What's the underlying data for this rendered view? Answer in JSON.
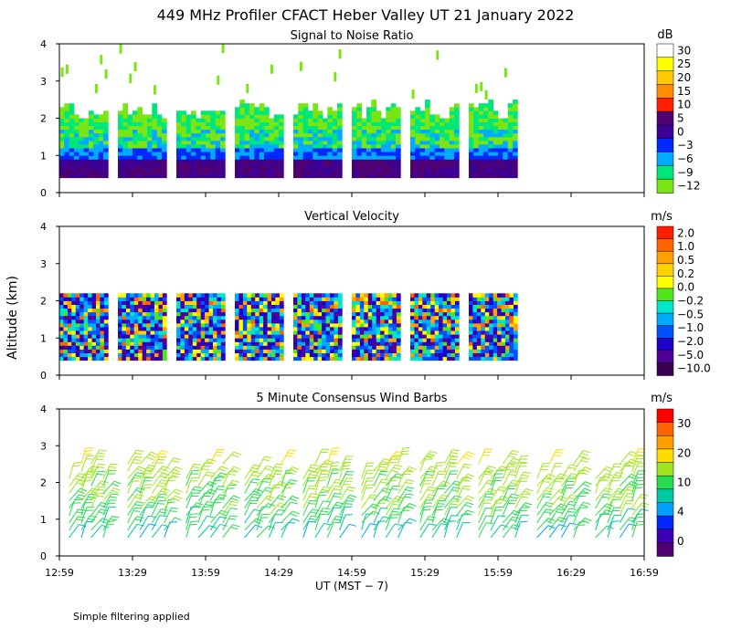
{
  "figure": {
    "title": "449 MHz Profiler CFACT Heber Valley UT 21 January 2022",
    "ylabel": "Altitude (km)",
    "xlabel": "UT  (MST − 7)",
    "footnote": "Simple filtering applied",
    "x_ticks": [
      "12:59",
      "13:29",
      "13:59",
      "14:29",
      "14:59",
      "15:29",
      "15:59",
      "16:29",
      "16:59"
    ]
  },
  "chart_data": [
    {
      "type": "heatmap",
      "title": "Signal to Noise Ratio",
      "x_range": [
        "12:59",
        "16:59"
      ],
      "xlim": [
        0,
        240
      ],
      "ylim": [
        0,
        4
      ],
      "y_ticks": [
        0,
        1,
        2,
        3,
        4
      ],
      "colorbar_unit": "dB",
      "colorbar_ticks": [
        "30",
        "25",
        "20",
        "15",
        "10",
        "5",
        "0",
        "−3",
        "−6",
        "−9",
        "−12"
      ],
      "colorbar_colors": [
        "#ffffff",
        "#ffff00",
        "#ffc800",
        "#ff8c00",
        "#ff1e00",
        "#500070",
        "#3c0096",
        "#0028ff",
        "#00aaff",
        "#00e678",
        "#78e614"
      ],
      "data_blocks_minutes": [
        [
          0,
          20
        ],
        [
          24,
          44
        ],
        [
          48,
          68
        ],
        [
          72,
          92
        ],
        [
          96,
          116
        ],
        [
          120,
          140
        ],
        [
          144,
          164
        ],
        [
          168,
          188
        ]
      ],
      "boundary_layer_top_km": 2.2
    },
    {
      "type": "heatmap",
      "title": "Vertical Velocity",
      "x_range": [
        "12:59",
        "16:59"
      ],
      "xlim": [
        0,
        240
      ],
      "ylim": [
        0,
        4
      ],
      "y_ticks": [
        0,
        1,
        2,
        3,
        4
      ],
      "colorbar_unit": "m/s",
      "colorbar_ticks": [
        "2.0",
        "1.0",
        "0.5",
        "0.2",
        "0.0",
        "−0.2",
        "−0.5",
        "−1.0",
        "−2.0",
        "−5.0",
        "−10.0"
      ],
      "colorbar_colors": [
        "#ff1e00",
        "#ff6400",
        "#ffa000",
        "#ffd200",
        "#ffff00",
        "#50e61e",
        "#00e6c8",
        "#00aaff",
        "#0050ff",
        "#1e00c8",
        "#500096",
        "#3c0050"
      ],
      "data_blocks_minutes": [
        [
          0,
          20
        ],
        [
          24,
          44
        ],
        [
          48,
          68
        ],
        [
          72,
          92
        ],
        [
          96,
          116
        ],
        [
          120,
          140
        ],
        [
          144,
          164
        ],
        [
          168,
          188
        ]
      ],
      "top_km": 2.2
    },
    {
      "type": "scatter",
      "title": "5 Minute Consensus Wind Barbs",
      "x_range": [
        "12:59",
        "16:59"
      ],
      "xlim": [
        0,
        240
      ],
      "ylim": [
        0,
        4
      ],
      "y_ticks": [
        0,
        1,
        2,
        3,
        4
      ],
      "colorbar_unit": "m/s",
      "colorbar_ticks": [
        "30",
        "20",
        "10",
        "4",
        "0"
      ],
      "colorbar_colors": [
        "#ff0000",
        "#ff6400",
        "#ffa000",
        "#ffdc00",
        "#a0e61e",
        "#28dc50",
        "#00c8a0",
        "#00a0ff",
        "#0028ff",
        "#3c00b4",
        "#500070"
      ],
      "barb_times_minutes": [
        4,
        9,
        13,
        18,
        28,
        33,
        38,
        43,
        52,
        57,
        62,
        67,
        76,
        81,
        86,
        91,
        100,
        105,
        110,
        115,
        124,
        129,
        134,
        139,
        148,
        153,
        158,
        163,
        172,
        177,
        182,
        187,
        196,
        201,
        206,
        211,
        220,
        225,
        230,
        235
      ],
      "barb_altitudes_km": [
        0.5,
        0.7,
        0.9,
        1.1,
        1.3,
        1.5,
        1.7,
        1.9,
        2.1,
        2.3,
        2.5
      ],
      "typical_speed_ms": [
        6,
        7,
        8,
        9,
        10,
        10,
        11,
        11,
        12,
        13,
        14
      ]
    }
  ]
}
